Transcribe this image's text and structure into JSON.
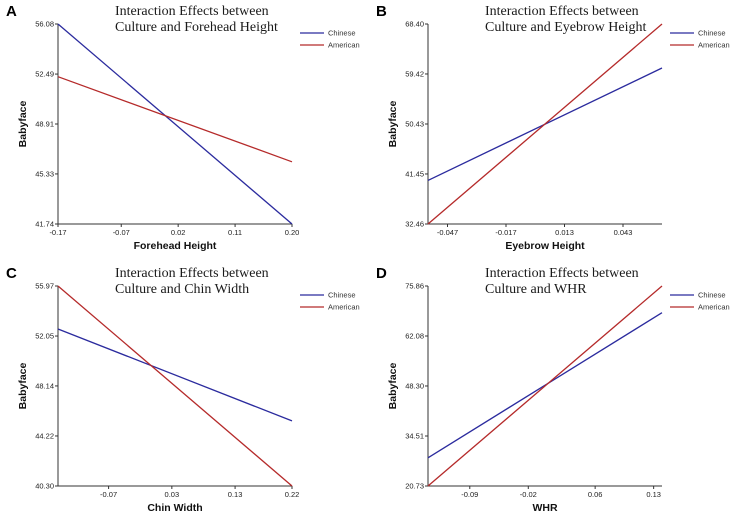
{
  "chart_data": [
    {
      "type": "line",
      "panel_label": "A",
      "title_lines": [
        "Interaction Effects between",
        "Culture and Forehead Height"
      ],
      "xlabel": "Forehead Height",
      "ylabel": "Babyface",
      "xlim": [
        -0.17,
        0.2
      ],
      "ylim": [
        41.74,
        56.08
      ],
      "xticks": [
        -0.17,
        -0.07,
        0.02,
        0.11,
        0.2
      ],
      "xtick_labels": [
        "-0.17",
        "-0.07",
        "0.02",
        "0.11",
        "0.20"
      ],
      "yticks": [
        41.74,
        45.33,
        48.91,
        52.49,
        56.08
      ],
      "ytick_labels": [
        "41.74",
        "45.33",
        "48.91",
        "52.49",
        "56.08"
      ],
      "series": [
        {
          "name": "Chinese",
          "color": "#2b2b9e",
          "x": [
            -0.17,
            0.2
          ],
          "y": [
            56.08,
            41.74
          ]
        },
        {
          "name": "American",
          "color": "#b52a2a",
          "x": [
            -0.17,
            0.2
          ],
          "y": [
            52.3,
            46.2
          ]
        }
      ]
    },
    {
      "type": "line",
      "panel_label": "B",
      "title_lines": [
        "Interaction Effects between",
        "Culture and Eyebrow Height"
      ],
      "xlabel": "Eyebrow Height",
      "ylabel": "Babyface",
      "xlim": [
        -0.057,
        0.063
      ],
      "ylim": [
        32.46,
        68.4
      ],
      "xticks": [
        -0.047,
        -0.017,
        0.013,
        0.043
      ],
      "xtick_labels": [
        "-0.047",
        "-0.017",
        "0.013",
        "0.043"
      ],
      "yticks": [
        32.46,
        41.45,
        50.43,
        59.42,
        68.4
      ],
      "ytick_labels": [
        "32.46",
        "41.45",
        "50.43",
        "59.42",
        "68.40"
      ],
      "series": [
        {
          "name": "Chinese",
          "color": "#2b2b9e",
          "x": [
            -0.057,
            0.063
          ],
          "y": [
            40.3,
            60.5
          ]
        },
        {
          "name": "American",
          "color": "#b52a2a",
          "x": [
            -0.057,
            0.063
          ],
          "y": [
            32.46,
            68.4
          ]
        }
      ]
    },
    {
      "type": "line",
      "panel_label": "C",
      "title_lines": [
        "Interaction Effects between",
        "Culture and Chin Width"
      ],
      "xlabel": "Chin Width",
      "ylabel": "Babyface",
      "xlim": [
        -0.15,
        0.22
      ],
      "ylim": [
        40.3,
        55.97
      ],
      "xticks": [
        -0.07,
        0.03,
        0.13,
        0.22
      ],
      "xtick_labels": [
        "-0.07",
        "0.03",
        "0.13",
        "0.22"
      ],
      "yticks": [
        40.3,
        44.22,
        48.14,
        52.05,
        55.97
      ],
      "ytick_labels": [
        "40.30",
        "44.22",
        "48.14",
        "52.05",
        "55.97"
      ],
      "series": [
        {
          "name": "Chinese",
          "color": "#2b2b9e",
          "x": [
            -0.15,
            0.22
          ],
          "y": [
            52.6,
            45.4
          ]
        },
        {
          "name": "American",
          "color": "#b52a2a",
          "x": [
            -0.15,
            0.22
          ],
          "y": [
            55.97,
            40.3
          ]
        }
      ]
    },
    {
      "type": "line",
      "panel_label": "D",
      "title_lines": [
        "Interaction Effects between",
        "Culture and WHR"
      ],
      "xlabel": "WHR",
      "ylabel": "Babyface",
      "xlim": [
        -0.14,
        0.14
      ],
      "ylim": [
        20.73,
        75.86
      ],
      "xticks": [
        -0.09,
        -0.02,
        0.06,
        0.13
      ],
      "xtick_labels": [
        "-0.09",
        "-0.02",
        "0.06",
        "0.13"
      ],
      "yticks": [
        20.73,
        34.51,
        48.3,
        62.08,
        75.86
      ],
      "ytick_labels": [
        "20.73",
        "34.51",
        "48.30",
        "62.08",
        "75.86"
      ],
      "series": [
        {
          "name": "Chinese",
          "color": "#2b2b9e",
          "x": [
            -0.14,
            0.14
          ],
          "y": [
            28.5,
            68.5
          ]
        },
        {
          "name": "American",
          "color": "#b52a2a",
          "x": [
            -0.14,
            0.14
          ],
          "y": [
            20.73,
            75.86
          ]
        }
      ]
    }
  ]
}
